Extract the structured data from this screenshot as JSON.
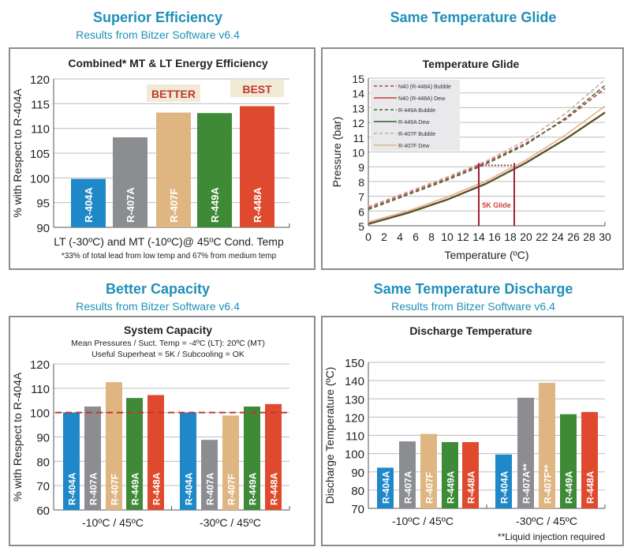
{
  "headings": [
    {
      "title": "Superior Efficiency",
      "subtitle": "Results from Bitzer Software v6.4"
    },
    {
      "title": "Same Temperature Glide",
      "subtitle": ""
    },
    {
      "title": "Better Capacity",
      "subtitle": "Results from Bitzer Software v6.4"
    },
    {
      "title": "Same Temperature Discharge",
      "subtitle": "Results from Bitzer Software v6.4"
    }
  ],
  "colors": {
    "R-404A": "#1e88c8",
    "R-407A": "#8b8d91",
    "R-407F": "#dfb682",
    "R-449A": "#3e8a37",
    "R-448A": "#df4a2f",
    "heading": "#1f8fb8",
    "reference_line": "#c0392b"
  },
  "chart_data": [
    {
      "type": "bar",
      "title": "Combined* MT & LT Energy Efficiency",
      "ylabel": "% with Respect to R-404A",
      "xlabel": "LT (-30ºC) and MT (-10ºC)@ 45ºC Cond. Temp",
      "note": "*33% of total lead from low temp and 67% from medium temp",
      "ylim": [
        90,
        120
      ],
      "yticks": [
        90,
        95,
        100,
        105,
        110,
        115,
        120
      ],
      "grid": true,
      "groups": [
        {
          "label": "",
          "categories": [
            "R-404A",
            "R-407A",
            "R-407F",
            "R-449A",
            "R-448A"
          ],
          "values": [
            99.8,
            108.2,
            113.2,
            113.1,
            114.5
          ]
        }
      ],
      "annotations": [
        {
          "text": "BETTER",
          "category": "R-407F"
        },
        {
          "text": "BEST",
          "category": "R-448A"
        }
      ]
    },
    {
      "type": "line",
      "title": "Temperature Glide",
      "xlabel": "Temperature (ºC)",
      "ylabel": "Pressure (bar)",
      "xlim": [
        0,
        30
      ],
      "ylim": [
        5,
        15
      ],
      "xticks": [
        0,
        2,
        4,
        6,
        8,
        10,
        12,
        14,
        16,
        18,
        20,
        22,
        24,
        26,
        28,
        30
      ],
      "yticks": [
        5,
        6,
        7,
        8,
        9,
        10,
        11,
        12,
        13,
        14,
        15
      ],
      "grid": true,
      "legend": "top-left",
      "x": [
        0,
        5,
        10,
        15,
        20,
        25,
        30
      ],
      "series": [
        {
          "name": "N40 (R-448A) Bubble",
          "style": "dashed",
          "color": "#b5403f",
          "values": [
            6.2,
            7.2,
            8.2,
            9.3,
            10.6,
            12.2,
            14.3
          ]
        },
        {
          "name": "N40 (R-448A) Dew",
          "style": "solid",
          "color": "#d0383a",
          "values": [
            5.15,
            5.9,
            6.8,
            7.9,
            9.3,
            10.9,
            12.7
          ]
        },
        {
          "name": "R-449A Bubble",
          "style": "dashed",
          "color": "#3d6b2e",
          "values": [
            6.1,
            7.1,
            8.1,
            9.2,
            10.5,
            12.3,
            14.5
          ]
        },
        {
          "name": "R-449A Dew",
          "style": "solid",
          "color": "#2f5e25",
          "values": [
            5.1,
            5.85,
            6.75,
            7.85,
            9.25,
            10.85,
            12.65
          ]
        },
        {
          "name": "R-407F Bubble",
          "style": "dashed",
          "color": "#c9a9a0",
          "values": [
            6.3,
            7.3,
            8.3,
            9.4,
            10.8,
            12.6,
            14.9
          ]
        },
        {
          "name": "R-407F Dew",
          "style": "solid",
          "color": "#d6b88a",
          "values": [
            5.25,
            6.0,
            6.95,
            8.05,
            9.45,
            11.15,
            13.1
          ]
        }
      ],
      "glide": {
        "label": "5K Glide",
        "from": 14,
        "to": 18.5,
        "pressure": 9.1,
        "color": "#a3203a"
      }
    },
    {
      "type": "bar",
      "title": "System Capacity",
      "subtitle": [
        "Mean Pressures / Suct. Temp = -4ºC (LT): 20ºC (MT)",
        "Useful Superheat = 5K / Subcooling = OK"
      ],
      "ylabel": "% with Respect to R-404A",
      "ylim": [
        60,
        120
      ],
      "yticks": [
        60,
        70,
        80,
        90,
        100,
        110,
        120
      ],
      "grid": true,
      "reference": 100,
      "groups": [
        {
          "label": "-10ºC / 45ºC",
          "categories": [
            "R-404A",
            "R-407A",
            "R-407F",
            "R-449A",
            "R-448A"
          ],
          "values": [
            100,
            102.5,
            112.5,
            106,
            107.2
          ]
        },
        {
          "label": "-30ºC / 45ºC",
          "categories": [
            "R-404A",
            "R-407A",
            "R-407F",
            "R-449A",
            "R-448A"
          ],
          "values": [
            100,
            88.8,
            98.8,
            102.5,
            103.5
          ]
        }
      ]
    },
    {
      "type": "bar",
      "title": "Discharge Temperature",
      "ylabel": "Discharge Temperature (ºC)",
      "ylim": [
        70,
        150
      ],
      "yticks": [
        70,
        80,
        90,
        100,
        110,
        120,
        130,
        140,
        150
      ],
      "grid": true,
      "note": "**Liquid injection required",
      "groups": [
        {
          "label": "-10ºC / 45ºC",
          "categories": [
            "R-404A",
            "R-407A",
            "R-407F",
            "R-449A",
            "R-448A"
          ],
          "values": [
            92.3,
            106.7,
            110.8,
            106.3,
            106.3
          ]
        },
        {
          "label": "-30ºC / 45ºC",
          "categories": [
            "R-404A",
            "R-407A**",
            "R-407F**",
            "R-449A",
            "R-448A"
          ],
          "values": [
            99.5,
            130.6,
            138.8,
            121.6,
            122.8
          ]
        }
      ]
    }
  ]
}
